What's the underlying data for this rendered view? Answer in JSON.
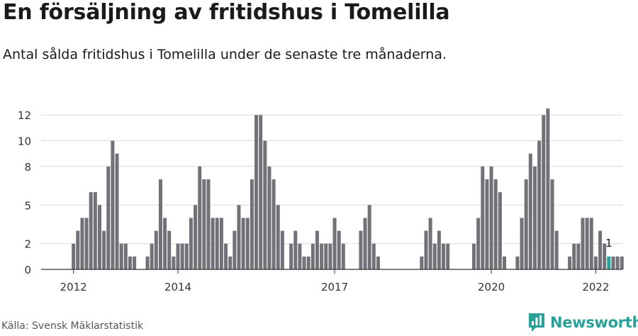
{
  "header": {
    "title": "En försäljning av fritidshus i Tomelilla",
    "subtitle": "Antal sålda fritidshus i Tomelilla under de senaste tre månaderna."
  },
  "footer": {
    "source": "Källa: Svensk Mäklarstatistik",
    "brand": "Newsworthy",
    "brand_icon": "newsworthy-logo-icon",
    "brand_color": "#2aa198"
  },
  "colors": {
    "bar": "#727177",
    "highlight": "#2aa198",
    "grid": "#d9d9d9",
    "axis": "#333333"
  },
  "chart_data": {
    "type": "bar",
    "title": "En försäljning av fritidshus i Tomelilla",
    "subtitle": "Antal sålda fritidshus i Tomelilla under de senaste tre månaderna.",
    "xlabel": "",
    "ylabel": "",
    "ylim": [
      0,
      12.5
    ],
    "yticks": [
      0,
      2,
      5,
      8,
      10,
      12
    ],
    "grid": true,
    "legend": "none",
    "x_start": "2011-12",
    "x_end": "2022-04",
    "x_ticks": [
      {
        "label": "2012",
        "month": "2012-01"
      },
      {
        "label": "2014",
        "month": "2014-01"
      },
      {
        "label": "2017",
        "month": "2017-01"
      },
      {
        "label": "2020",
        "month": "2020-01"
      },
      {
        "label": "2022",
        "month": "2022-01"
      }
    ],
    "values": [
      0,
      2,
      3,
      4,
      4,
      6,
      6,
      5,
      3,
      8,
      10,
      9,
      2,
      2,
      1,
      1,
      0,
      0,
      1,
      2,
      3,
      7,
      4,
      3,
      1,
      2,
      2,
      2,
      4,
      5,
      8,
      7,
      7,
      4,
      4,
      4,
      2,
      1,
      3,
      5,
      4,
      4,
      7,
      12,
      12,
      10,
      8,
      7,
      5,
      3,
      0,
      2,
      3,
      2,
      1,
      1,
      2,
      3,
      2,
      2,
      2,
      4,
      3,
      2,
      0,
      0,
      0,
      3,
      4,
      5,
      2,
      1,
      0,
      0,
      0,
      0,
      0,
      0,
      0,
      0,
      0,
      1,
      3,
      4,
      2,
      3,
      2,
      2,
      0,
      0,
      0,
      0,
      0,
      2,
      4,
      8,
      7,
      8,
      7,
      6,
      1,
      0,
      0,
      1,
      4,
      7,
      9,
      8,
      10,
      12,
      12.5,
      7,
      3,
      0,
      0,
      1,
      2,
      2,
      4,
      4,
      4,
      1,
      3,
      2,
      1,
      1,
      1,
      1
    ],
    "highlight": {
      "month": "2022-04",
      "value": 1,
      "label": "1"
    }
  }
}
